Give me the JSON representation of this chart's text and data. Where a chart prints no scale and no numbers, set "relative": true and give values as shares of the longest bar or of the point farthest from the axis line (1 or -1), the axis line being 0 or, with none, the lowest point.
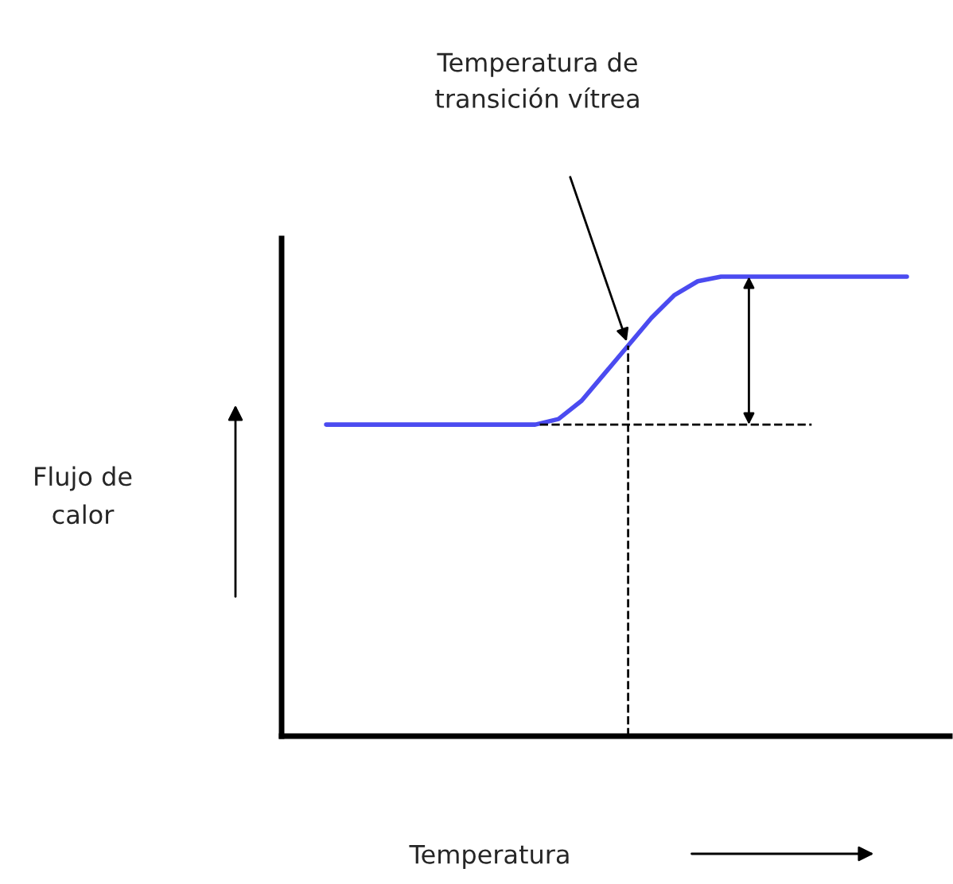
{
  "chart_data": {
    "type": "line",
    "relative": true,
    "xlabel": "Temperatura",
    "annotations": [
      "Temperatura de\ntransición vítrea",
      "Flujo de\ncalor"
    ],
    "categories": [
      null,
      null,
      null,
      null,
      null,
      null,
      null,
      null,
      null,
      null,
      null,
      null,
      null,
      null,
      null,
      null,
      null,
      null,
      null,
      null,
      null,
      null,
      null,
      null,
      null,
      null
    ],
    "series": [
      {
        "color": "#4b4bf0",
        "values": [
          0.678,
          0.678,
          0.678,
          0.678,
          0.678,
          0.678,
          0.678,
          0.678,
          0.678,
          0.678,
          0.69,
          0.73,
          0.79,
          0.85,
          0.91,
          0.96,
          0.99,
          1.0,
          1.0,
          1.0,
          1.0,
          1.0,
          1.0,
          1.0,
          1.0,
          1.0
        ]
      }
    ],
    "ref_lines": [
      {
        "axis": "y",
        "value": 0.678,
        "line_style": "dashed",
        "color": "#000000"
      }
    ],
    "legend": false,
    "marker": "none",
    "line_style": "solid"
  }
}
